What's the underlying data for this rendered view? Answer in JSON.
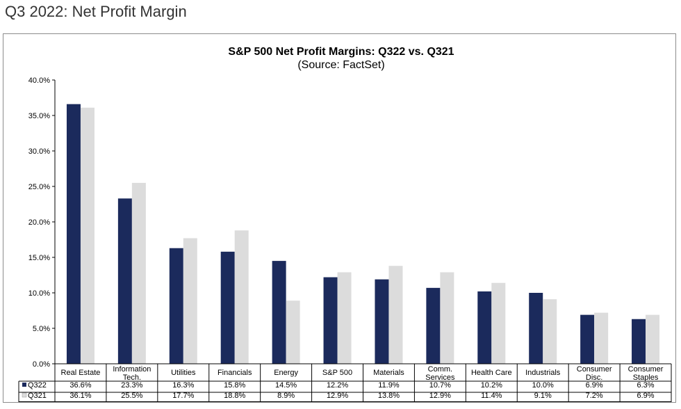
{
  "page": {
    "title": "Q3 2022: Net Profit Margin"
  },
  "chart_data": {
    "type": "bar",
    "title": "S&P 500 Net Profit Margins: Q322 vs. Q321",
    "subtitle": "(Source: FactSet)",
    "categories": [
      [
        "Real Estate"
      ],
      [
        "Information",
        "Tech."
      ],
      [
        "Utilities"
      ],
      [
        "Financials"
      ],
      [
        "Energy"
      ],
      [
        "S&P 500"
      ],
      [
        "Materials"
      ],
      [
        "Comm.",
        "Services"
      ],
      [
        "Health Care"
      ],
      [
        "Industrials"
      ],
      [
        "Consumer",
        "Disc."
      ],
      [
        "Consumer",
        "Staples"
      ]
    ],
    "series": [
      {
        "name": "Q322",
        "color": "#1b2a5c",
        "values": [
          36.6,
          23.3,
          16.3,
          15.8,
          14.5,
          12.2,
          11.9,
          10.7,
          10.2,
          10.0,
          6.9,
          6.3
        ],
        "labels": [
          "36.6%",
          "23.3%",
          "16.3%",
          "15.8%",
          "14.5%",
          "12.2%",
          "11.9%",
          "10.7%",
          "10.2%",
          "10.0%",
          "6.9%",
          "6.3%"
        ]
      },
      {
        "name": "Q321",
        "color": "#dcdcdc",
        "values": [
          36.1,
          25.5,
          17.7,
          18.8,
          8.9,
          12.9,
          13.8,
          12.9,
          11.4,
          9.1,
          7.2,
          6.9
        ],
        "labels": [
          "36.1%",
          "25.5%",
          "17.7%",
          "18.8%",
          "8.9%",
          "12.9%",
          "13.8%",
          "12.9%",
          "11.4%",
          "9.1%",
          "7.2%",
          "6.9%"
        ]
      }
    ],
    "ylim": [
      0,
      40
    ],
    "yticks": [
      "0.0%",
      "5.0%",
      "10.0%",
      "15.0%",
      "20.0%",
      "25.0%",
      "30.0%",
      "35.0%",
      "40.0%"
    ],
    "ytick_values": [
      0,
      5,
      10,
      15,
      20,
      25,
      30,
      35,
      40
    ],
    "grid": false,
    "legend": "data-table-rows"
  }
}
